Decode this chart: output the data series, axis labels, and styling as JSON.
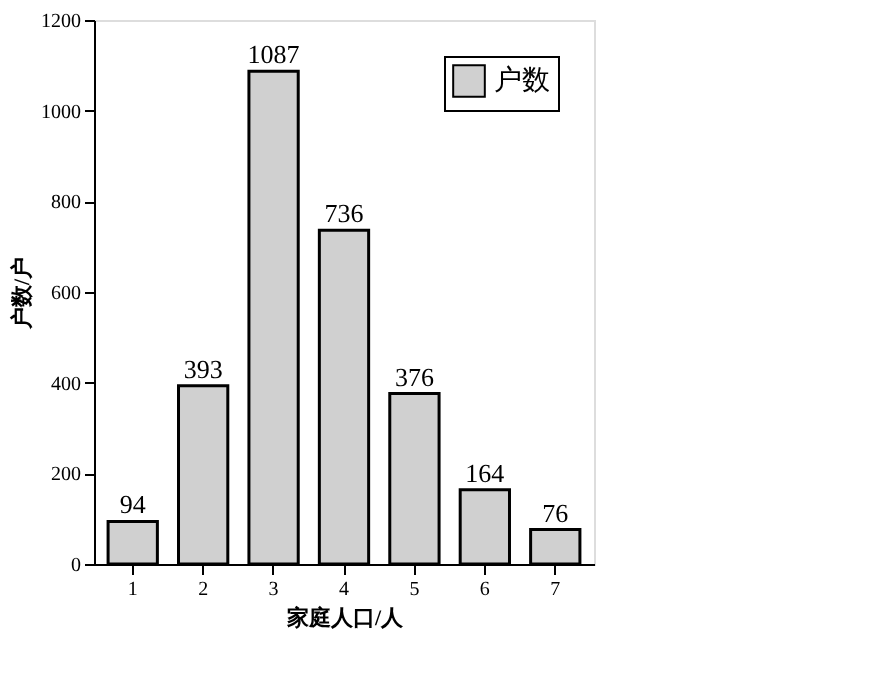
{
  "chart_data": {
    "type": "bar",
    "xlabel": "家庭人口/人",
    "ylabel": "户数/户",
    "categories": [
      "1",
      "2",
      "3",
      "4",
      "5",
      "6",
      "7"
    ],
    "series": [
      {
        "name": "户数",
        "color": "#d0d0d0",
        "values": [
          94,
          393,
          1087,
          736,
          376,
          164,
          76
        ]
      }
    ],
    "ylim": [
      0,
      1200
    ],
    "yticks": [
      0,
      200,
      400,
      600,
      800,
      1000,
      1200
    ],
    "data_labels": true,
    "legend": "top right",
    "grid": false
  }
}
